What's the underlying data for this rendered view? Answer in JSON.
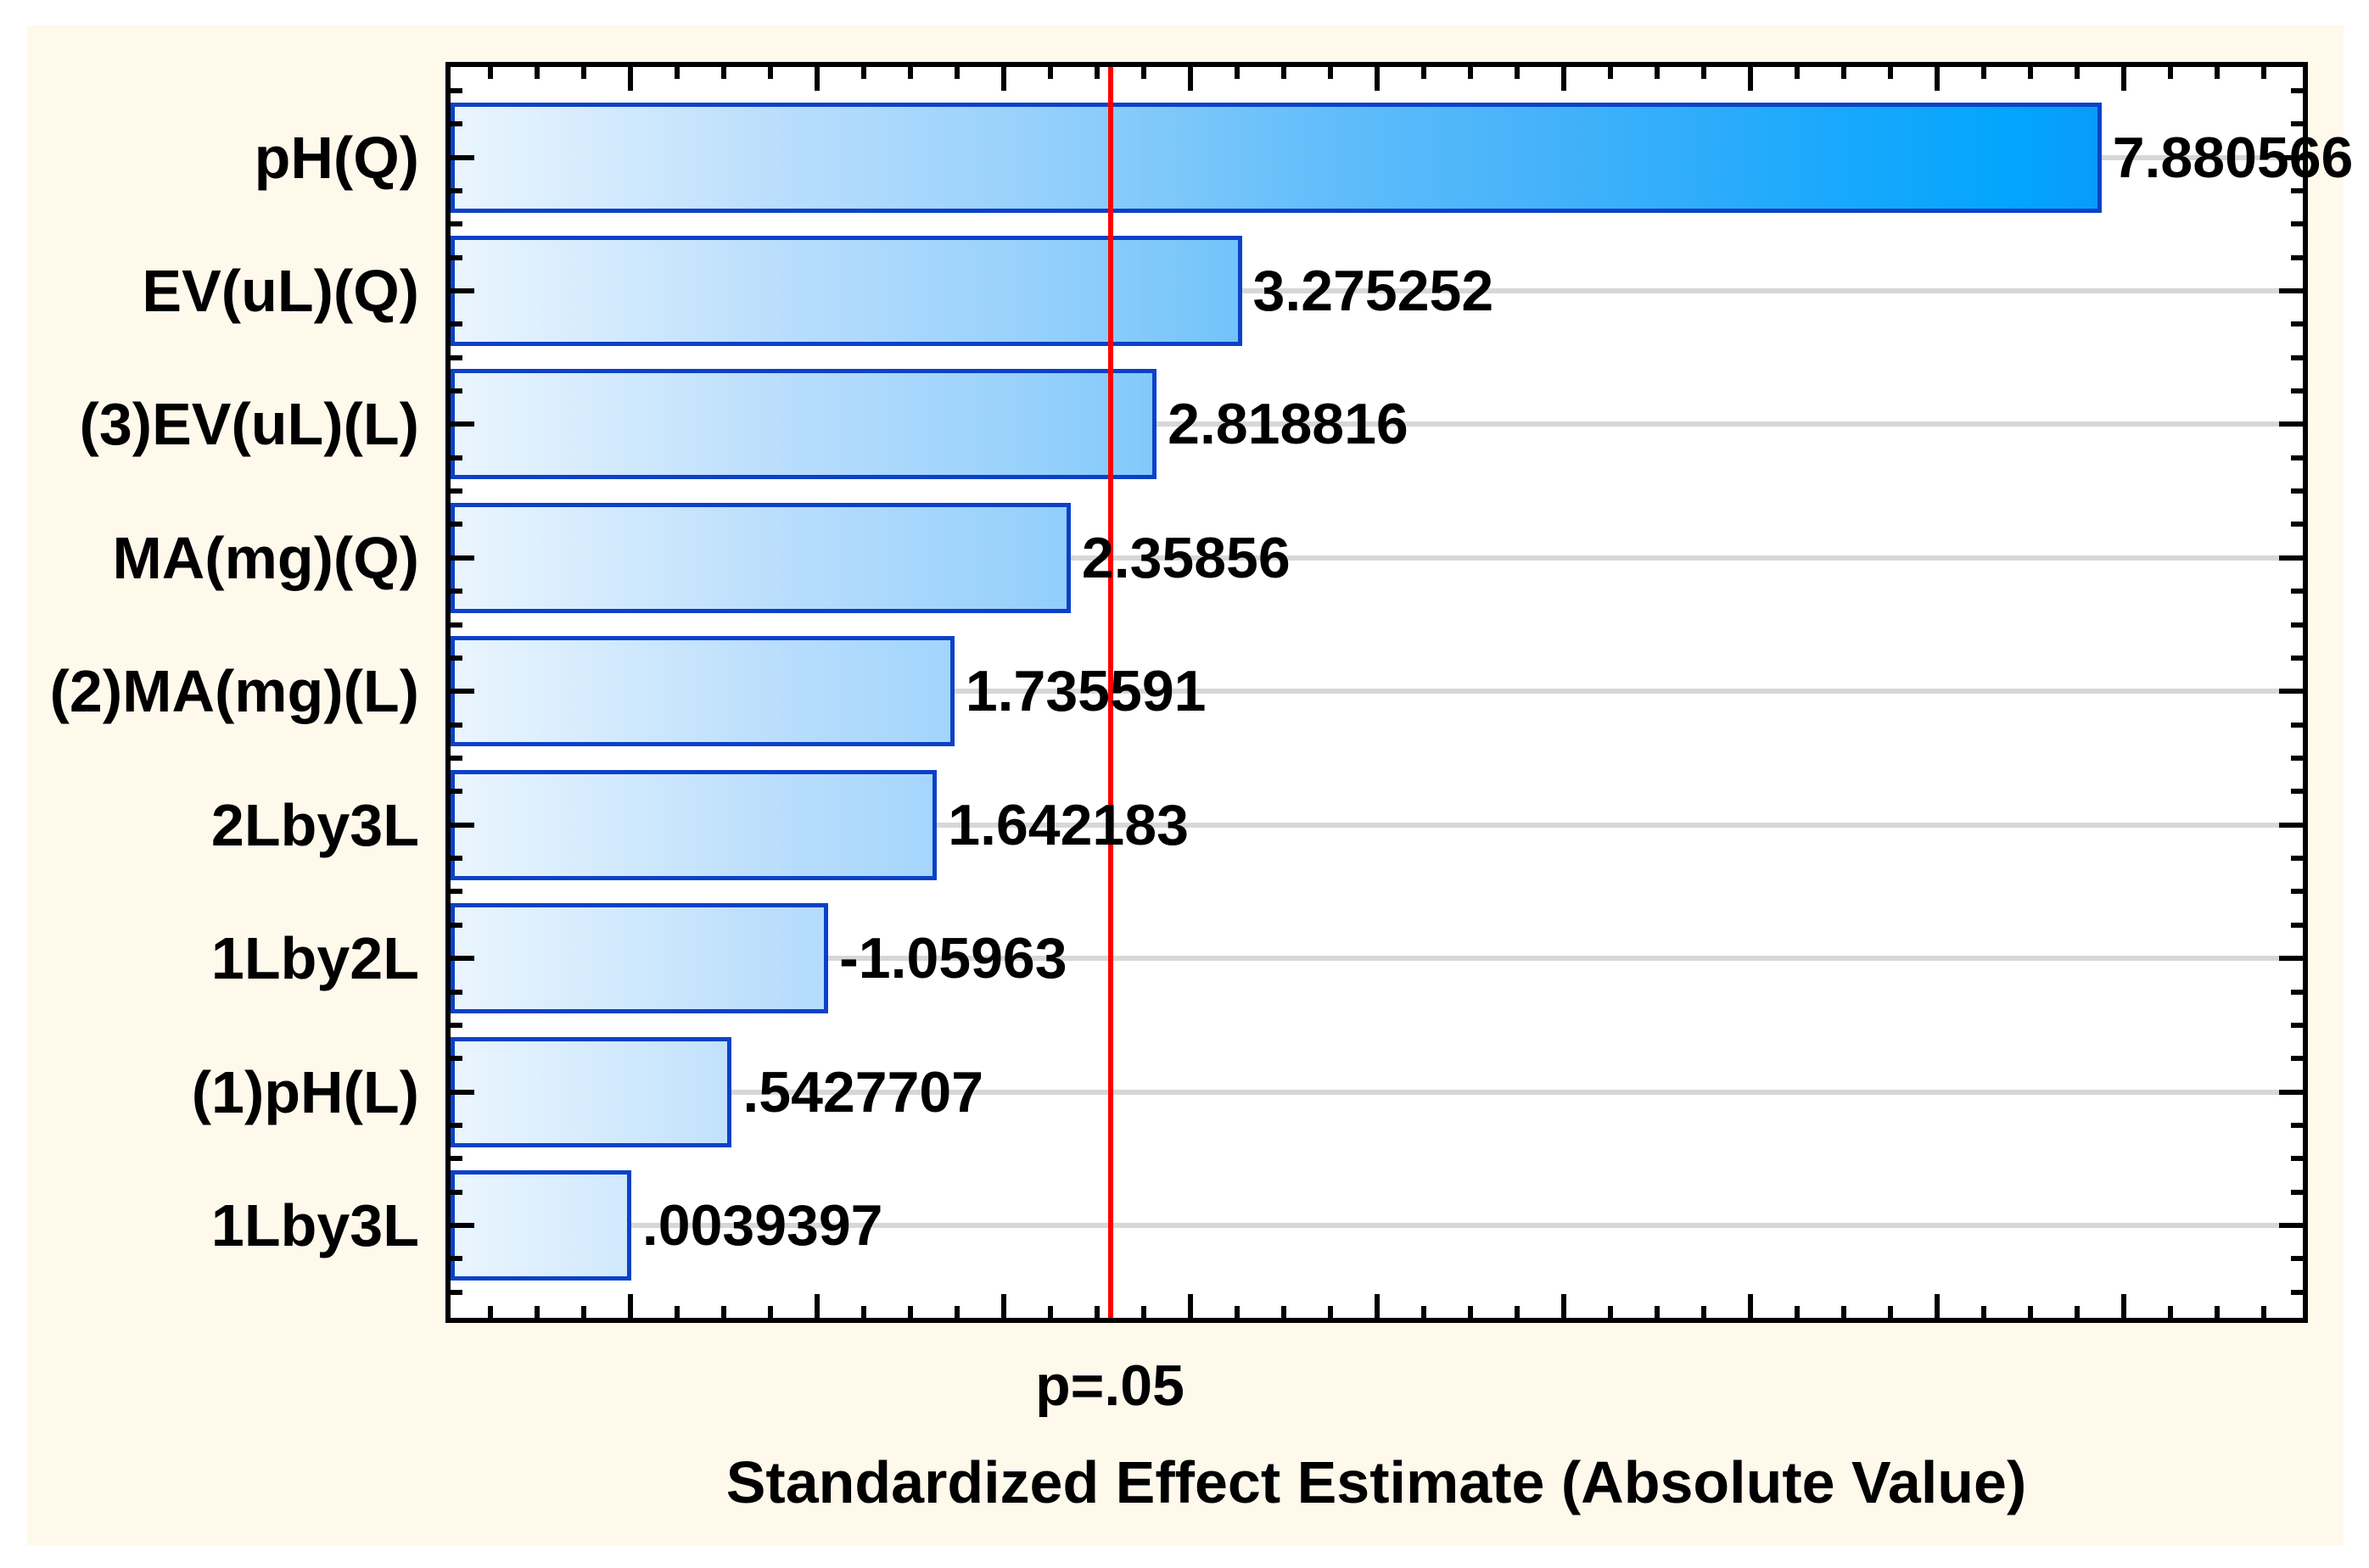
{
  "chart_data": {
    "type": "bar",
    "orientation": "horizontal",
    "title": "Standardized Effect Estimate (Absolute Value)",
    "p_line_label": "p=.05",
    "p_line_value": 2.5706,
    "categories": [
      "pH(Q)",
      "EV(uL)(Q)",
      "(3)EV(uL)(L)",
      "MA(mg)(Q)",
      "(2)MA(mg)(L)",
      "2Lby3L",
      "1Lby2L",
      "(1)pH(L)",
      "1Lby3L"
    ],
    "values": [
      7.880566,
      3.275252,
      2.818816,
      2.35856,
      1.735591,
      1.642183,
      -1.05963,
      0.5427707,
      0.0039397
    ],
    "value_labels": [
      "7.880566",
      "3.275252",
      "2.818816",
      "2.35856",
      "1.735591",
      "1.642183",
      "-1.05963",
      ".5427707",
      ".0039397"
    ],
    "bars_drawn_from_axis_min": true,
    "axis": {
      "min": -1,
      "max": 9,
      "major_tick_step": 1,
      "minor_tick_step": 0.25,
      "tick_labels_shown": false,
      "grid": "horizontal-gray-lines-at-category-centers"
    },
    "legend": "none",
    "colors": {
      "page_margin": "#FFFFFF",
      "background": "#FFF9EC",
      "plot_background": "#FFFFFF",
      "plot_border": "#000000",
      "bar_border": "#0C41C8",
      "bar_gradient_start": "#EAF5FE",
      "bar_gradient_end": "#1486EE",
      "gridline": "#D7D7D7",
      "reference_line": "#FF0000",
      "text": "#000000"
    }
  }
}
